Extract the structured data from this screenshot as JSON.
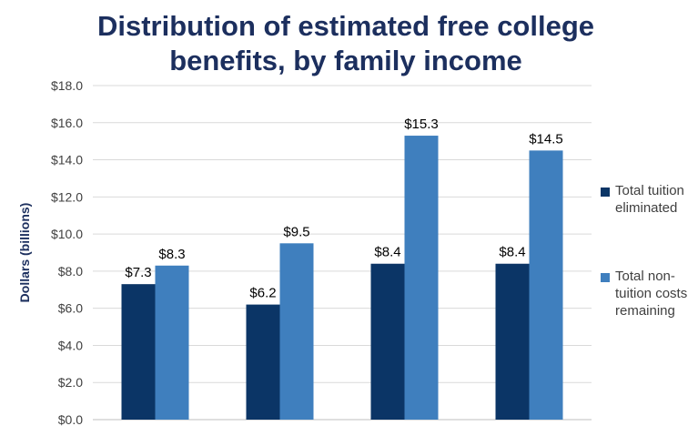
{
  "chart_data": {
    "type": "bar",
    "title": "Distribution of estimated free college benefits, by family income",
    "xlabel": "",
    "ylabel": "Dollars (billions)",
    "ylim": [
      0,
      18
    ],
    "yticks": [
      "$0.0",
      "$2.0",
      "$4.0",
      "$6.0",
      "$8.0",
      "$10.0",
      "$12.0",
      "$14.0",
      "$16.0",
      "$18.0"
    ],
    "categories": [
      "",
      "",
      "",
      ""
    ],
    "series": [
      {
        "name": "Total tuition eliminated",
        "color": "#0b3566",
        "values": [
          7.3,
          6.2,
          8.4,
          8.4
        ],
        "labels": [
          "$7.3",
          "$6.2",
          "$8.4",
          "$8.4"
        ]
      },
      {
        "name": "Total non-tuition costs remaining",
        "color": "#3f7fbe",
        "values": [
          8.3,
          9.5,
          15.3,
          14.5
        ],
        "labels": [
          "$8.3",
          "$9.5",
          "$15.3",
          "$14.5"
        ]
      }
    ],
    "grid": true,
    "legend": "right"
  }
}
